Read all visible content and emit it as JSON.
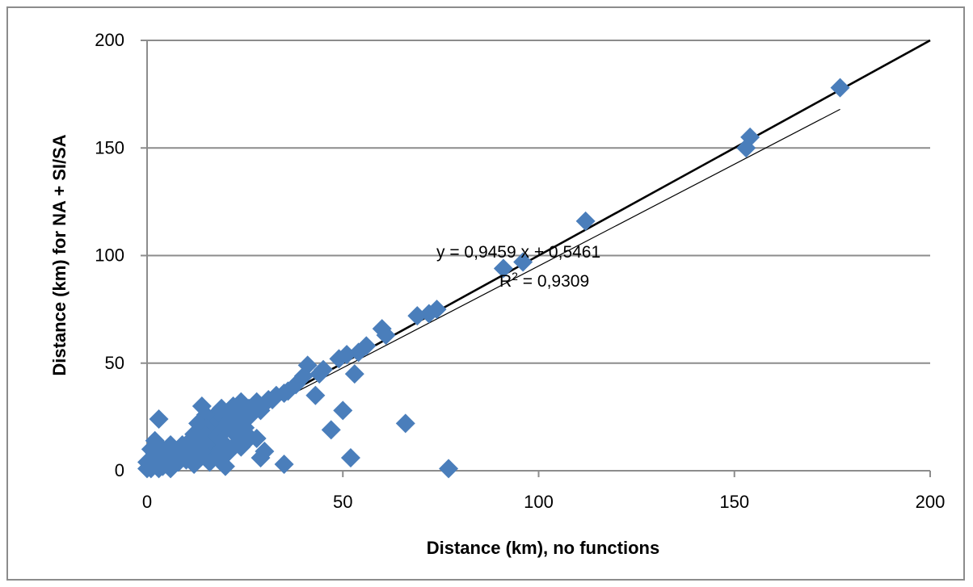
{
  "chart_data": {
    "type": "scatter",
    "title": "",
    "xlabel": "Distance (km), no functions",
    "ylabel": "Distance (km) for NA + SI/SA",
    "xlim": [
      0,
      200
    ],
    "ylim": [
      0,
      200
    ],
    "x_ticks": [
      "0",
      "50",
      "100",
      "150",
      "200"
    ],
    "y_ticks": [
      "0",
      "50",
      "100",
      "150",
      "200"
    ],
    "grid": "horizontal",
    "legend": "none",
    "marker_color": "#4a7ebb",
    "equation_text": "y = 0,9459 x + 0,5461",
    "r2_label": "R",
    "r2_sup": "2",
    "r2_value": " = 0,9309",
    "trendline": {
      "slope": 0.9459,
      "intercept": 0.5461,
      "x_range": [
        0,
        177
      ]
    },
    "reference_line": {
      "x": [
        0,
        200
      ],
      "y": [
        0,
        200
      ]
    },
    "points": [
      [
        177,
        178
      ],
      [
        154,
        155
      ],
      [
        153,
        150
      ],
      [
        112,
        116
      ],
      [
        96,
        97
      ],
      [
        91,
        94
      ],
      [
        74,
        75
      ],
      [
        72,
        73
      ],
      [
        69,
        72
      ],
      [
        61,
        63
      ],
      [
        60,
        66
      ],
      [
        56,
        58
      ],
      [
        54,
        55
      ],
      [
        53,
        45
      ],
      [
        51,
        54
      ],
      [
        49,
        52
      ],
      [
        47,
        19
      ],
      [
        50,
        28
      ],
      [
        52,
        6
      ],
      [
        66,
        22
      ],
      [
        77,
        1
      ],
      [
        45,
        47
      ],
      [
        43,
        35
      ],
      [
        44,
        45
      ],
      [
        41,
        49
      ],
      [
        40,
        44
      ],
      [
        38,
        40
      ],
      [
        36,
        37
      ],
      [
        35,
        36
      ],
      [
        35,
        3
      ],
      [
        33,
        35
      ],
      [
        32,
        33
      ],
      [
        31,
        33
      ],
      [
        30,
        31
      ],
      [
        30,
        9
      ],
      [
        29,
        6
      ],
      [
        29,
        28
      ],
      [
        28,
        32
      ],
      [
        27,
        30
      ],
      [
        27,
        27
      ],
      [
        26,
        25
      ],
      [
        26,
        16
      ],
      [
        25,
        20
      ],
      [
        24,
        32
      ],
      [
        24,
        27
      ],
      [
        23,
        22
      ],
      [
        23,
        13
      ],
      [
        22,
        30
      ],
      [
        22,
        25
      ],
      [
        22,
        18
      ],
      [
        21,
        27
      ],
      [
        21,
        21
      ],
      [
        20,
        2
      ],
      [
        20,
        24
      ],
      [
        20,
        12
      ],
      [
        19,
        29
      ],
      [
        19,
        23
      ],
      [
        19,
        17
      ],
      [
        18,
        27
      ],
      [
        18,
        20
      ],
      [
        18,
        14
      ],
      [
        17,
        25
      ],
      [
        17,
        19
      ],
      [
        17,
        10
      ],
      [
        16,
        22
      ],
      [
        16,
        15
      ],
      [
        16,
        4
      ],
      [
        15,
        26
      ],
      [
        15,
        20
      ],
      [
        15,
        12
      ],
      [
        14,
        30
      ],
      [
        14,
        18
      ],
      [
        14,
        9
      ],
      [
        13,
        22
      ],
      [
        13,
        15
      ],
      [
        13,
        6
      ],
      [
        12,
        17
      ],
      [
        12,
        12
      ],
      [
        11,
        14
      ],
      [
        11,
        8
      ],
      [
        10,
        11
      ],
      [
        10,
        5
      ],
      [
        9,
        12
      ],
      [
        9,
        7
      ],
      [
        8,
        9
      ],
      [
        8,
        4
      ],
      [
        7,
        10
      ],
      [
        7,
        3
      ],
      [
        6,
        12
      ],
      [
        6,
        7
      ],
      [
        6,
        1
      ],
      [
        5,
        8
      ],
      [
        5,
        4
      ],
      [
        4,
        10
      ],
      [
        4,
        2
      ],
      [
        3,
        24
      ],
      [
        3,
        6
      ],
      [
        3,
        1
      ],
      [
        2,
        14
      ],
      [
        2,
        8
      ],
      [
        2,
        3
      ],
      [
        1,
        10
      ],
      [
        1,
        5
      ],
      [
        1,
        1
      ],
      [
        0,
        1
      ],
      [
        0,
        4
      ],
      [
        24,
        11
      ],
      [
        28,
        15
      ],
      [
        25,
        13
      ],
      [
        21,
        9
      ],
      [
        18,
        6
      ],
      [
        23,
        16
      ],
      [
        26,
        29
      ],
      [
        12,
        3
      ]
    ]
  }
}
